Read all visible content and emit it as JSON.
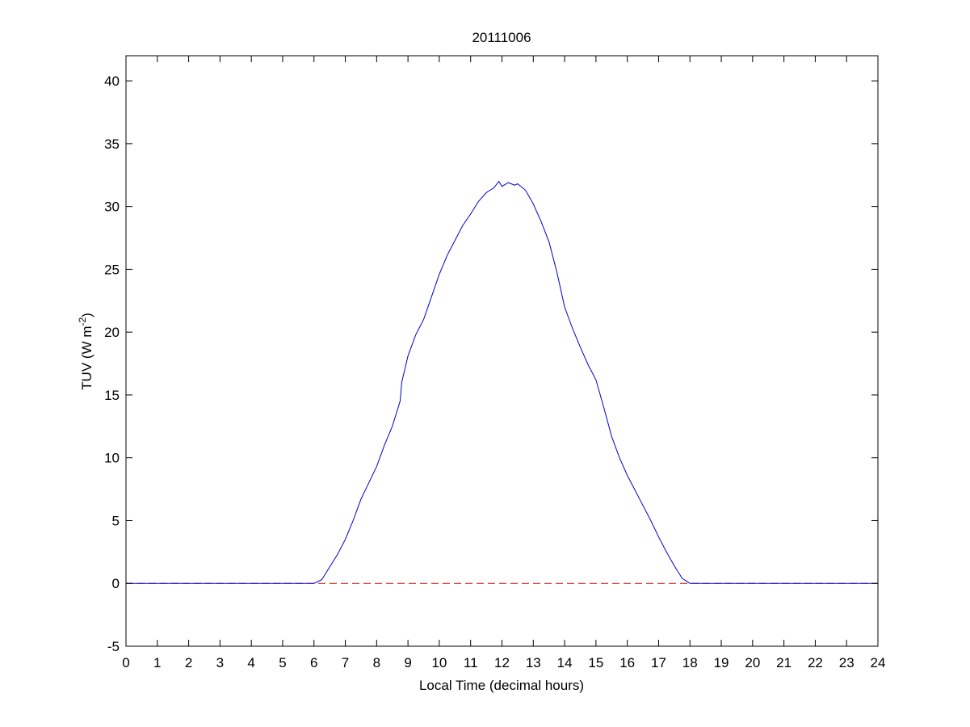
{
  "chart_data": {
    "type": "line",
    "title": "20111006",
    "xlabel": "Local Time (decimal hours)",
    "ylabel": "TUV (W m",
    "ylabel_superscript": "-2",
    "ylabel_suffix": ")",
    "xlim": [
      0,
      24
    ],
    "ylim": [
      -5,
      42
    ],
    "xticks": [
      0,
      1,
      2,
      3,
      4,
      5,
      6,
      7,
      8,
      9,
      10,
      11,
      12,
      13,
      14,
      15,
      16,
      17,
      18,
      19,
      20,
      21,
      22,
      23,
      24
    ],
    "yticks": [
      -5,
      0,
      5,
      10,
      15,
      20,
      25,
      30,
      35,
      40
    ],
    "grid": false,
    "series": [
      {
        "color": "#0000cc",
        "style": "solid",
        "x": [
          0,
          6.0,
          6.25,
          6.5,
          6.75,
          7.0,
          7.25,
          7.5,
          7.75,
          8.0,
          8.25,
          8.5,
          8.75,
          8.8,
          9.0,
          9.25,
          9.5,
          9.75,
          10.0,
          10.25,
          10.5,
          10.75,
          11.0,
          11.25,
          11.5,
          11.75,
          11.9,
          12.0,
          12.2,
          12.4,
          12.5,
          12.75,
          13.0,
          13.25,
          13.5,
          13.75,
          14.0,
          14.25,
          14.5,
          14.75,
          15.0,
          15.25,
          15.5,
          15.75,
          16.0,
          16.25,
          16.5,
          16.75,
          17.0,
          17.25,
          17.5,
          17.75,
          18.0,
          24
        ],
        "y": [
          0,
          0,
          0.3,
          1.3,
          2.3,
          3.5,
          5.0,
          6.7,
          8.0,
          9.3,
          11.0,
          12.5,
          14.5,
          16.0,
          18.1,
          19.8,
          21.0,
          22.8,
          24.6,
          26.1,
          27.3,
          28.5,
          29.4,
          30.4,
          31.1,
          31.5,
          32.0,
          31.6,
          31.9,
          31.7,
          31.8,
          31.3,
          30.2,
          28.8,
          27.2,
          24.8,
          22.0,
          20.3,
          18.8,
          17.4,
          16.2,
          14.0,
          11.7,
          10.0,
          8.6,
          7.4,
          6.2,
          5.0,
          3.7,
          2.5,
          1.4,
          0.4,
          0,
          0
        ]
      },
      {
        "color": "#cc0000",
        "style": "dashed",
        "x": [
          0,
          24
        ],
        "y": [
          0,
          0
        ]
      }
    ]
  }
}
